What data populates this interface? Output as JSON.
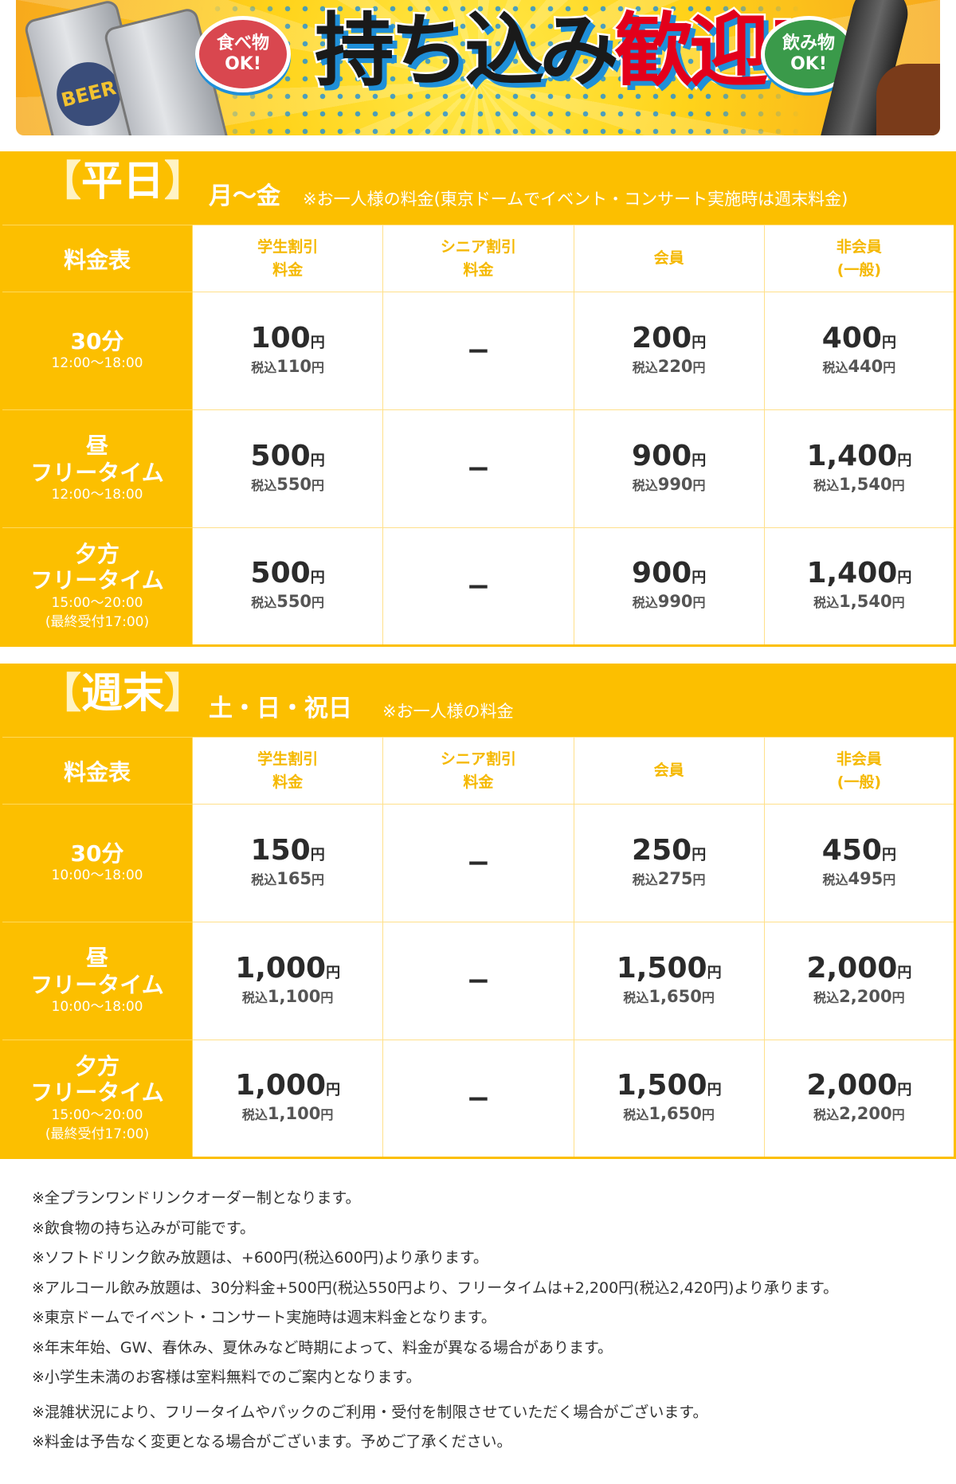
{
  "banner": {
    "title_dark": "持ち込み",
    "title_red": "歓迎!",
    "bubble_food": [
      "食べ物",
      "OK!"
    ],
    "bubble_drink": [
      "飲み物",
      "OK!"
    ],
    "can_label": "BEER",
    "colors": {
      "yellow": "#ffd31a",
      "red": "#e3001b",
      "blue": "#1f8fd8",
      "food_bubble": "#d9474f",
      "drink_bubble": "#3a9a4a"
    }
  },
  "colors": {
    "accent": "#fcbf00",
    "header_text": "#f5b800",
    "border": "#ffe08a"
  },
  "columns": [
    "料金表",
    "学生割引\n料金",
    "シニア割引\n料金",
    "会員",
    "非会員\n(一般)"
  ],
  "sections": [
    {
      "tag": "平日",
      "days": "月〜金",
      "note": "※お一人様の料金(東京ドームでイベント・コンサート実施時は週末料金)",
      "rows": [
        {
          "name": "30分",
          "time": "12:00〜18:00",
          "prices": [
            [
              "100",
              "110"
            ],
            null,
            [
              "200",
              "220"
            ],
            [
              "400",
              "440"
            ]
          ]
        },
        {
          "name": "昼\nフリータイム",
          "time": "12:00〜18:00",
          "prices": [
            [
              "500",
              "550"
            ],
            null,
            [
              "900",
              "990"
            ],
            [
              "1,400",
              "1,540"
            ]
          ]
        },
        {
          "name": "夕方\nフリータイム",
          "time": "15:00〜20:00\n(最終受付17:00)",
          "prices": [
            [
              "500",
              "550"
            ],
            null,
            [
              "900",
              "990"
            ],
            [
              "1,400",
              "1,540"
            ]
          ]
        }
      ]
    },
    {
      "tag": "週末",
      "days": "土・日・祝日",
      "note": "※お一人様の料金",
      "rows": [
        {
          "name": "30分",
          "time": "10:00〜18:00",
          "prices": [
            [
              "150",
              "165"
            ],
            null,
            [
              "250",
              "275"
            ],
            [
              "450",
              "495"
            ]
          ]
        },
        {
          "name": "昼\nフリータイム",
          "time": "10:00〜18:00",
          "prices": [
            [
              "1,000",
              "1,100"
            ],
            null,
            [
              "1,500",
              "1,650"
            ],
            [
              "2,000",
              "2,200"
            ]
          ]
        },
        {
          "name": "夕方\nフリータイム",
          "time": "15:00〜20:00\n(最終受付17:00)",
          "prices": [
            [
              "1,000",
              "1,100"
            ],
            null,
            [
              "1,500",
              "1,650"
            ],
            [
              "2,000",
              "2,200"
            ]
          ]
        }
      ]
    }
  ],
  "labels": {
    "yen": "円",
    "tax_in": "税込",
    "dash": "−"
  },
  "notes": [
    "※全プランワンドリンクオーダー制となります。",
    "※飲食物の持ち込みが可能です。",
    "※ソフトドリンク飲み放題は、+600円(税込600円)より承ります。",
    "※アルコール飲み放題は、30分料金+500円(税込550円より、フリータイムは+2,200円(税込2,420円)より承ります。",
    "※東京ドームでイベント・コンサート実施時は週末料金となります。",
    "※年末年始、GW、春休み、夏休みなど時期によって、料金が異なる場合があります。",
    "※小学生未満のお客様は室料無料でのご案内となります。",
    "※混雑状況により、フリータイムやパックのご利用・受付を制限させていただく場合がございます。",
    "※料金は予告なく変更となる場合がございます。予めご了承ください。"
  ]
}
